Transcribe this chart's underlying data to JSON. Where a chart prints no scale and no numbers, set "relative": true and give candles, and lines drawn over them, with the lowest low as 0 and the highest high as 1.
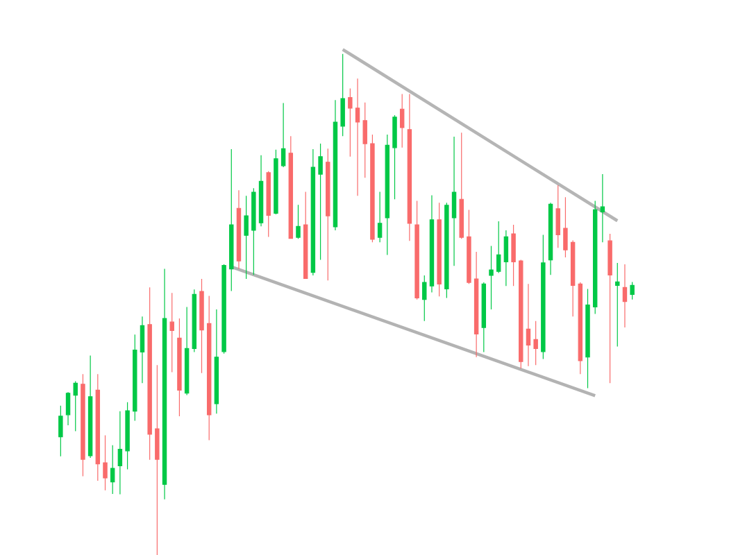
{
  "chart_data": {
    "type": "candlestick",
    "relative": true,
    "categories": [
      null,
      null,
      null,
      null,
      null,
      null,
      null,
      null,
      null,
      null,
      null,
      null,
      null,
      null,
      null,
      null,
      null,
      null,
      null,
      null,
      null,
      null,
      null,
      null,
      null,
      null,
      null,
      null,
      null,
      null,
      null,
      null,
      null,
      null,
      null,
      null,
      null,
      null,
      null,
      null,
      null,
      null,
      null,
      null,
      null,
      null,
      null,
      null,
      null,
      null,
      null,
      null,
      null,
      null,
      null,
      null,
      null,
      null,
      null,
      null,
      null,
      null,
      null,
      null,
      null,
      null,
      null,
      null,
      null,
      null,
      null,
      null,
      null,
      null,
      null,
      null,
      null,
      null
    ],
    "ohlc": [
      [
        0.236,
        0.298,
        0.197,
        0.277
      ],
      [
        0.28,
        0.325,
        0.259,
        0.323
      ],
      [
        0.319,
        0.347,
        0.247,
        0.343
      ],
      [
        0.341,
        0.361,
        0.157,
        0.191
      ],
      [
        0.198,
        0.398,
        0.194,
        0.316
      ],
      [
        0.329,
        0.361,
        0.148,
        0.182
      ],
      [
        0.184,
        0.239,
        0.129,
        0.154
      ],
      [
        0.146,
        0.219,
        0.122,
        0.173
      ],
      [
        0.178,
        0.287,
        0.121,
        0.211
      ],
      [
        0.208,
        0.305,
        0.171,
        0.288
      ],
      [
        0.287,
        0.44,
        0.268,
        0.409
      ],
      [
        0.405,
        0.476,
        0.343,
        0.458
      ],
      [
        0.46,
        0.534,
        0.19,
        0.241
      ],
      [
        0.252,
        0.379,
        0.0,
        0.191
      ],
      [
        0.141,
        0.571,
        0.111,
        0.472
      ],
      [
        0.465,
        0.523,
        0.365,
        0.448
      ],
      [
        0.433,
        0.472,
        0.277,
        0.329
      ],
      [
        0.323,
        0.495,
        0.319,
        0.412
      ],
      [
        0.412,
        0.53,
        0.405,
        0.52
      ],
      [
        0.526,
        0.551,
        0.363,
        0.449
      ],
      [
        0.462,
        0.517,
        0.229,
        0.28
      ],
      [
        0.302,
        0.49,
        0.282,
        0.395
      ],
      [
        0.406,
        0.58,
        0.402,
        0.578
      ],
      [
        0.571,
        0.81,
        0.527,
        0.659
      ],
      [
        0.692,
        0.728,
        0.571,
        0.587
      ],
      [
        0.638,
        0.717,
        0.551,
        0.677
      ],
      [
        0.648,
        0.732,
        0.559,
        0.724
      ],
      [
        0.663,
        0.798,
        0.656,
        0.746
      ],
      [
        0.763,
        0.766,
        0.635,
        0.678
      ],
      [
        0.682,
        0.809,
        0.68,
        0.791
      ],
      [
        0.777,
        0.902,
        0.774,
        0.811
      ],
      [
        0.802,
        0.836,
        0.631,
        0.632
      ],
      [
        0.634,
        0.699,
        0.631,
        0.656
      ],
      [
        0.659,
        0.725,
        0.551,
        0.552
      ],
      [
        0.564,
        0.81,
        0.558,
        0.774
      ],
      [
        0.76,
        0.821,
        0.589,
        0.795
      ],
      [
        0.784,
        0.811,
        0.548,
        0.677
      ],
      [
        0.655,
        0.908,
        0.648,
        0.864
      ],
      [
        0.856,
        1.0,
        0.836,
        0.911
      ],
      [
        0.913,
        0.931,
        0.795,
        0.892
      ],
      [
        0.892,
        0.951,
        0.717,
        0.864
      ],
      [
        0.867,
        0.903,
        0.753,
        0.821
      ],
      [
        0.821,
        0.839,
        0.624,
        0.63
      ],
      [
        0.634,
        0.725,
        0.624,
        0.662
      ],
      [
        0.673,
        0.839,
        0.599,
        0.818
      ],
      [
        0.813,
        0.878,
        0.71,
        0.874
      ],
      [
        0.89,
        0.92,
        0.813,
        0.853
      ],
      [
        0.849,
        0.92,
        0.627,
        0.662
      ],
      [
        0.659,
        0.707,
        0.51,
        0.513
      ],
      [
        0.51,
        0.558,
        0.467,
        0.544
      ],
      [
        0.537,
        0.718,
        0.524,
        0.669
      ],
      [
        0.669,
        0.703,
        0.516,
        0.541
      ],
      [
        0.531,
        0.703,
        0.513,
        0.698
      ],
      [
        0.673,
        0.835,
        0.577,
        0.724
      ],
      [
        0.71,
        0.843,
        0.631,
        0.634
      ],
      [
        0.635,
        0.689,
        0.541,
        0.544
      ],
      [
        0.551,
        0.605,
        0.395,
        0.441
      ],
      [
        0.454,
        0.544,
        0.405,
        0.541
      ],
      [
        0.558,
        0.617,
        0.49,
        0.569
      ],
      [
        0.566,
        0.666,
        0.563,
        0.599
      ],
      [
        0.585,
        0.648,
        0.537,
        0.635
      ],
      [
        0.641,
        0.659,
        0.537,
        0.585
      ],
      [
        0.587,
        0.589,
        0.372,
        0.386
      ],
      [
        0.451,
        0.541,
        0.377,
        0.419
      ],
      [
        0.43,
        0.467,
        0.379,
        0.412
      ],
      [
        0.406,
        0.639,
        0.391,
        0.583
      ],
      [
        0.589,
        0.703,
        0.559,
        0.7
      ],
      [
        0.691,
        0.738,
        0.613,
        0.639
      ],
      [
        0.652,
        0.714,
        0.594,
        0.609
      ],
      [
        0.624,
        0.628,
        0.476,
        0.538
      ],
      [
        0.541,
        0.544,
        0.361,
        0.388
      ],
      [
        0.395,
        0.531,
        0.333,
        0.499
      ],
      [
        0.495,
        0.707,
        0.481,
        0.689
      ],
      [
        0.685,
        0.76,
        0.624,
        0.695
      ],
      [
        0.627,
        0.641,
        0.343,
        0.559
      ],
      [
        0.538,
        0.583,
        0.416,
        0.545
      ],
      [
        0.534,
        0.58,
        0.454,
        0.506
      ],
      [
        0.52,
        0.545,
        0.51,
        0.538
      ]
    ],
    "colors": [
      "#00c846",
      "#00c846",
      "#00c846",
      "#f96b6b",
      "#00c846",
      "#f96b6b",
      "#f96b6b",
      "#00c846",
      "#00c846",
      "#00c846",
      "#00c846",
      "#00c846",
      "#f96b6b",
      "#f96b6b",
      "#00c846",
      "#f96b6b",
      "#f96b6b",
      "#00c846",
      "#00c846",
      "#f96b6b",
      "#f96b6b",
      "#00c846",
      "#00c846",
      "#00c846",
      "#f96b6b",
      "#00c846",
      "#00c846",
      "#00c846",
      "#f96b6b",
      "#00c846",
      "#00c846",
      "#f96b6b",
      "#00c846",
      "#f96b6b",
      "#00c846",
      "#00c846",
      "#f96b6b",
      "#00c846",
      "#00c846",
      "#f96b6b",
      "#f96b6b",
      "#f96b6b",
      "#f96b6b",
      "#00c846",
      "#00c846",
      "#00c846",
      "#f96b6b",
      "#f96b6b",
      "#f96b6b",
      "#00c846",
      "#00c846",
      "#f96b6b",
      "#00c846",
      "#00c846",
      "#f96b6b",
      "#f96b6b",
      "#f96b6b",
      "#00c846",
      "#00c846",
      "#00c846",
      "#00c846",
      "#f96b6b",
      "#f96b6b",
      "#f96b6b",
      "#f96b6b",
      "#00c846",
      "#00c846",
      "#f96b6b",
      "#f96b6b",
      "#f96b6b",
      "#f96b6b",
      "#00c846",
      "#00c846",
      "#00c846",
      "#f96b6b",
      "#00c846",
      "#f96b6b",
      "#00c846"
    ],
    "series": [
      {
        "type": "line",
        "color": "#b5b5b5",
        "values": [
          null,
          null,
          null,
          null,
          null,
          null,
          null,
          null,
          null,
          null,
          null,
          null,
          null,
          null,
          null,
          null,
          null,
          null,
          null,
          null,
          null,
          null,
          null,
          null,
          null,
          null,
          null,
          null,
          null,
          null,
          null,
          null,
          null,
          null,
          null,
          null,
          null,
          null,
          1.009,
          null,
          null,
          null,
          null,
          null,
          null,
          null,
          null,
          null,
          null,
          null,
          null,
          null,
          null,
          null,
          null,
          null,
          null,
          null,
          null,
          null,
          null,
          null,
          null,
          null,
          null,
          null,
          null,
          null,
          null,
          null,
          null,
          null,
          null,
          null,
          null,
          0.667,
          null,
          null
        ]
      },
      {
        "type": "line",
        "color": "#b3b3b3",
        "values": [
          null,
          null,
          null,
          null,
          null,
          null,
          null,
          null,
          null,
          null,
          null,
          null,
          null,
          null,
          null,
          null,
          null,
          null,
          null,
          null,
          null,
          null,
          null,
          0.575,
          null,
          null,
          null,
          null,
          null,
          null,
          null,
          null,
          null,
          null,
          null,
          null,
          null,
          null,
          null,
          null,
          null,
          null,
          null,
          null,
          null,
          null,
          null,
          null,
          null,
          null,
          null,
          null,
          null,
          null,
          null,
          null,
          null,
          null,
          null,
          null,
          null,
          null,
          null,
          null,
          null,
          null,
          null,
          null,
          null,
          null,
          null,
          null,
          0.318,
          null,
          null,
          null,
          null,
          null
        ]
      }
    ]
  }
}
